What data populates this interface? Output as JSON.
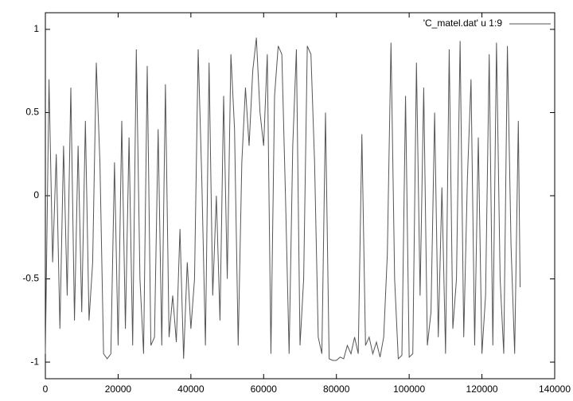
{
  "chart_data": {
    "type": "line",
    "x": [
      0,
      1000,
      2000,
      3000,
      4000,
      5000,
      6000,
      7000,
      8000,
      9000,
      10000,
      11000,
      12000,
      13000,
      14000,
      15000,
      16000,
      17000,
      18000,
      19000,
      20000,
      21000,
      22000,
      23000,
      24000,
      25000,
      26000,
      27000,
      28000,
      29000,
      30000,
      31000,
      32000,
      33000,
      34000,
      35000,
      36000,
      37000,
      38000,
      39000,
      40000,
      41000,
      42000,
      43000,
      44000,
      45000,
      46000,
      47000,
      48000,
      49000,
      50000,
      51000,
      52000,
      53000,
      54000,
      55000,
      56000,
      57000,
      58000,
      59000,
      60000,
      61000,
      62000,
      63000,
      64000,
      65000,
      66000,
      67000,
      68000,
      69000,
      70000,
      71000,
      72000,
      73000,
      74000,
      75000,
      76000,
      77000,
      78000,
      79000,
      80000,
      81000,
      82000,
      83000,
      84000,
      85000,
      86000,
      87000,
      88000,
      89000,
      90000,
      91000,
      92000,
      93000,
      94000,
      95000,
      96000,
      97000,
      98000,
      99000,
      100000,
      101000,
      102000,
      103000,
      104000,
      105000,
      106000,
      107000,
      108000,
      109000,
      110000,
      111000,
      112000,
      113000,
      114000,
      115000,
      116000,
      117000,
      118000,
      119000,
      120000,
      121000,
      122000,
      123000,
      124000,
      125000,
      126000,
      127000,
      128000,
      129000,
      130000,
      130500
    ],
    "series": [
      {
        "name": "'C_matel.dat' u 1:9",
        "color": "#555555",
        "values": [
          -0.95,
          0.7,
          -0.4,
          0.25,
          -0.8,
          0.3,
          -0.6,
          0.65,
          -0.75,
          0.3,
          -0.7,
          0.45,
          -0.75,
          -0.4,
          0.8,
          0.2,
          -0.95,
          -0.98,
          -0.95,
          0.2,
          -0.9,
          0.45,
          -0.8,
          0.35,
          -0.9,
          0.88,
          -0.5,
          -0.95,
          0.78,
          -0.9,
          -0.85,
          0.4,
          -0.9,
          0.67,
          -0.85,
          -0.6,
          -0.88,
          -0.2,
          -0.98,
          -0.4,
          -0.8,
          -0.5,
          0.88,
          0.1,
          -0.9,
          0.8,
          -0.6,
          0.0,
          -0.75,
          0.6,
          -0.5,
          0.85,
          0.4,
          -0.9,
          0.2,
          0.65,
          0.3,
          0.75,
          0.95,
          0.5,
          0.3,
          0.85,
          -0.95,
          0.6,
          0.9,
          0.85,
          0.0,
          -0.95,
          0.3,
          0.88,
          -0.9,
          -0.5,
          0.9,
          0.85,
          0.2,
          -0.85,
          -0.95,
          0.5,
          -0.98,
          -0.99,
          -0.99,
          -0.97,
          -0.98,
          -0.9,
          -0.95,
          -0.85,
          -0.95,
          0.37,
          -0.9,
          -0.85,
          -0.95,
          -0.88,
          -0.97,
          -0.85,
          -0.35,
          0.92,
          -0.5,
          -0.98,
          -0.96,
          0.6,
          -0.97,
          -0.95,
          0.8,
          -0.6,
          0.65,
          -0.9,
          -0.7,
          0.5,
          -0.85,
          0.05,
          -0.95,
          0.88,
          -0.8,
          -0.5,
          0.93,
          -0.85,
          0.1,
          0.7,
          -0.9,
          0.35,
          -0.95,
          -0.6,
          0.85,
          -0.9,
          0.92,
          -0.5,
          -0.95,
          0.9,
          -0.3,
          -0.95,
          0.45,
          -0.55
        ]
      }
    ],
    "xlim": [
      0,
      140000
    ],
    "xticks": [
      0,
      20000,
      40000,
      60000,
      80000,
      100000,
      120000,
      140000
    ],
    "ylim": [
      -1.1,
      1.1
    ],
    "yticks": [
      1,
      0.5,
      0,
      -0.5,
      -1
    ],
    "legend": "top-right"
  }
}
